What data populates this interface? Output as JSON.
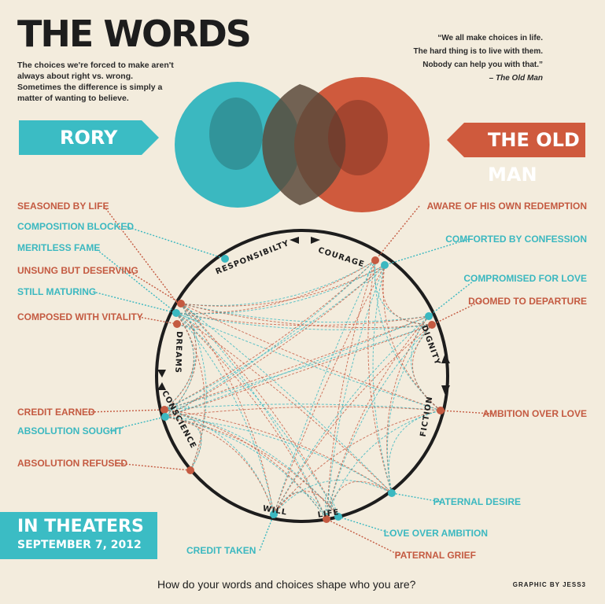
{
  "header": {
    "title": "THE WORDS",
    "intro": "The choices we're forced to make aren't always about right vs. wrong. Sometimes the difference is simply a matter of wanting to believe."
  },
  "quote": {
    "lines": [
      "“We all make choices in life.",
      "The hard thing is to live with them.",
      "Nobody can help you with that.”"
    ],
    "source": "– The Old Man"
  },
  "characters": {
    "left": "RORY",
    "right": "THE OLD MAN"
  },
  "ring_words": {
    "responsibility": "RESPONSIBILTY",
    "courage": "COURAGE",
    "dignity": "DIGNITY",
    "fiction": "FICTION",
    "life": "LIFE",
    "will": "WILL",
    "conscience": "CONSCIENCE",
    "dreams": "DREAMS"
  },
  "left_labels": [
    {
      "text": "SEASONED BY LIFE",
      "color": "red"
    },
    {
      "text": "COMPOSITION BLOCKED",
      "color": "blue"
    },
    {
      "text": "MERITLESS FAME",
      "color": "blue"
    },
    {
      "text": "UNSUNG BUT DESERVING",
      "color": "red"
    },
    {
      "text": "STILL MATURING",
      "color": "blue"
    },
    {
      "text": "COMPOSED WITH VITALITY",
      "color": "red"
    },
    {
      "text": "CREDIT EARNED",
      "color": "red"
    },
    {
      "text": "ABSOLUTION SOUGHT",
      "color": "blue"
    },
    {
      "text": "ABSOLUTION REFUSED",
      "color": "red"
    },
    {
      "text": "CREDIT TAKEN",
      "color": "blue"
    }
  ],
  "right_labels": [
    {
      "text": "AWARE OF HIS OWN REDEMPTION",
      "color": "red"
    },
    {
      "text": "COMFORTED BY CONFESSION",
      "color": "blue"
    },
    {
      "text": "COMPROMISED FOR LOVE",
      "color": "blue"
    },
    {
      "text": "DOOMED TO DEPARTURE",
      "color": "red"
    },
    {
      "text": "AMBITION OVER LOVE",
      "color": "red"
    },
    {
      "text": "PATERNAL DESIRE",
      "color": "blue"
    },
    {
      "text": "LOVE OVER AMBITION",
      "color": "blue"
    },
    {
      "text": "PATERNAL GRIEF",
      "color": "red"
    }
  ],
  "footer": {
    "release_line1": "IN THEATERS",
    "release_line2": "SEPTEMBER 7, 2012",
    "question": "How do your words and choices shape who you are?",
    "credit": "GRAPHIC BY JESS3"
  },
  "colors": {
    "red": "#c45a41",
    "blue": "#3bb8c0",
    "ink": "#1d1d1d",
    "paper": "#f3ecdd"
  }
}
